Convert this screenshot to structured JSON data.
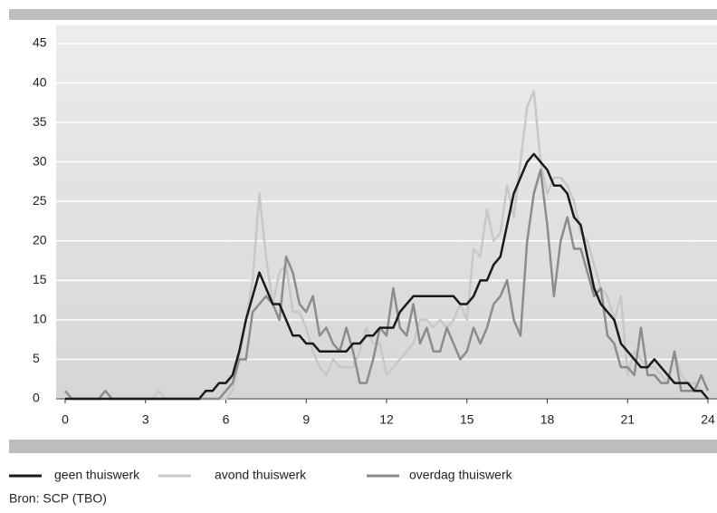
{
  "chart_data": {
    "type": "line",
    "x": [
      0,
      0.25,
      0.5,
      0.75,
      1,
      1.25,
      1.5,
      1.75,
      2,
      2.25,
      2.5,
      2.75,
      3,
      3.25,
      3.5,
      3.75,
      4,
      4.25,
      4.5,
      4.75,
      5,
      5.25,
      5.5,
      5.75,
      6,
      6.25,
      6.5,
      6.75,
      7,
      7.25,
      7.5,
      7.75,
      8,
      8.25,
      8.5,
      8.75,
      9,
      9.25,
      9.5,
      9.75,
      10,
      10.25,
      10.5,
      10.75,
      11,
      11.25,
      11.5,
      11.75,
      12,
      12.25,
      12.5,
      12.75,
      13,
      13.25,
      13.5,
      13.75,
      14,
      14.25,
      14.5,
      14.75,
      15,
      15.25,
      15.5,
      15.75,
      16,
      16.25,
      16.5,
      16.75,
      17,
      17.25,
      17.5,
      17.75,
      18,
      18.25,
      18.5,
      18.75,
      19,
      19.25,
      19.5,
      19.75,
      20,
      20.25,
      20.5,
      20.75,
      21,
      21.25,
      21.5,
      21.75,
      22,
      22.25,
      22.5,
      22.75,
      23,
      23.25,
      23.5,
      23.75,
      24
    ],
    "series": [
      {
        "name": "geen thuiswerk",
        "color": "#1a1a1a",
        "values": [
          0,
          0,
          0,
          0,
          0,
          0,
          0,
          0,
          0,
          0,
          0,
          0,
          0,
          0,
          0,
          0,
          0,
          0,
          0,
          0,
          0,
          1,
          1,
          2,
          2,
          3,
          6,
          10,
          13,
          16,
          14,
          12,
          12,
          10,
          8,
          8,
          7,
          7,
          6,
          6,
          6,
          6,
          6,
          7,
          7,
          8,
          8,
          9,
          9,
          9,
          11,
          12,
          13,
          13,
          13,
          13,
          13,
          13,
          13,
          12,
          12,
          13,
          15,
          15,
          17,
          18,
          22,
          26,
          28,
          30,
          31,
          30,
          29,
          27,
          27,
          26,
          23,
          22,
          18,
          14,
          12,
          11,
          10,
          7,
          6,
          5,
          4,
          4,
          5,
          4,
          3,
          2,
          2,
          2,
          1,
          1,
          0
        ]
      },
      {
        "name": "avond thuiswerk",
        "color": "#c8c8c8",
        "values": [
          0,
          0,
          0,
          0,
          0,
          0,
          0,
          0,
          0,
          0,
          0,
          0,
          0,
          0,
          1,
          0,
          0,
          0,
          0,
          0,
          0,
          0,
          0,
          0,
          0,
          1,
          5,
          10,
          15,
          26,
          18,
          12,
          16,
          17,
          11,
          11,
          9,
          6,
          4,
          3,
          5,
          4,
          4,
          4,
          6,
          9,
          7,
          7,
          3,
          4,
          5,
          6,
          7,
          10,
          10,
          9,
          10,
          9,
          10,
          12,
          10,
          19,
          18,
          24,
          20,
          21,
          27,
          23,
          30,
          37,
          39,
          30,
          26,
          28,
          28,
          27,
          25,
          21,
          20,
          17,
          14,
          13,
          10,
          13,
          3,
          6,
          5,
          4,
          4,
          3,
          2,
          6,
          3,
          2,
          2,
          1,
          0
        ]
      },
      {
        "name": "overdag thuiswerk",
        "color": "#8c8c8c",
        "values": [
          1,
          0,
          0,
          0,
          0,
          0,
          1,
          0,
          0,
          0,
          0,
          0,
          0,
          0,
          0,
          0,
          0,
          0,
          0,
          0,
          0,
          0,
          0,
          0,
          1,
          2,
          5,
          5,
          11,
          12,
          13,
          12,
          10,
          18,
          16,
          12,
          11,
          13,
          8,
          9,
          7,
          6,
          9,
          6,
          2,
          2,
          5,
          9,
          8,
          14,
          9,
          8,
          12,
          7,
          9,
          6,
          6,
          9,
          7,
          5,
          6,
          9,
          7,
          9,
          12,
          13,
          15,
          10,
          8,
          20,
          26,
          29,
          22,
          13,
          20,
          23,
          19,
          19,
          16,
          13,
          14,
          8,
          7,
          4,
          4,
          3,
          9,
          3,
          3,
          2,
          2,
          6,
          1,
          1,
          1,
          3,
          1
        ]
      }
    ],
    "xlim": [
      0,
      24
    ],
    "xticks": [
      0,
      3,
      6,
      9,
      12,
      15,
      18,
      21,
      24
    ],
    "ylim": [
      0,
      45
    ],
    "yticks": [
      0,
      5,
      10,
      15,
      20,
      25,
      30,
      35,
      40,
      45
    ],
    "grid": true,
    "source": "Bron: SCP (TBO)"
  }
}
